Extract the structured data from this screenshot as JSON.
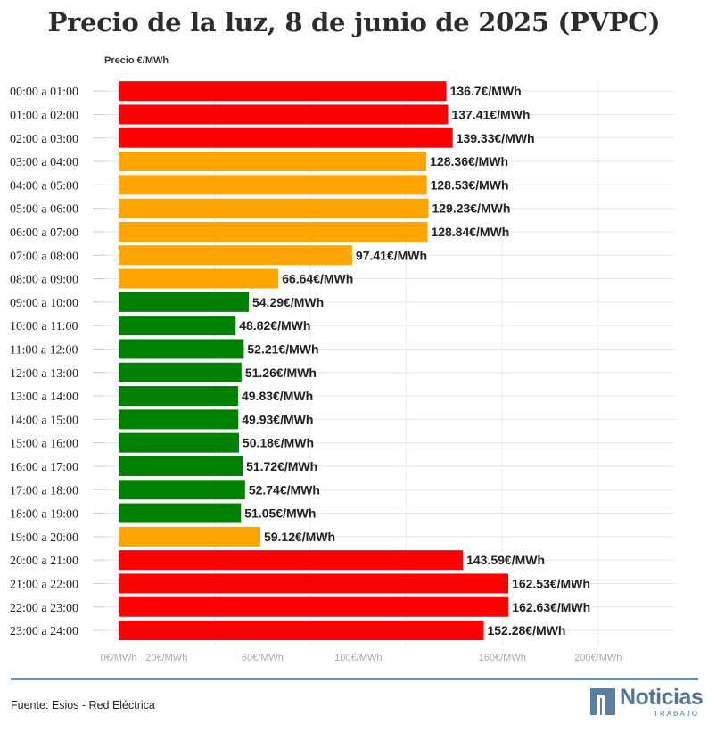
{
  "header": {
    "title": "Precio de la luz, 8 de junio de 2025 (PVPC)",
    "axis_title": "Precio €/MWh"
  },
  "footer": {
    "source": "Fuente: Esios - Red Eléctrica",
    "logo_name": "Noticias",
    "logo_sub": "TRABAJO"
  },
  "colors": {
    "high": "#ff0000",
    "medium": "#ffa500",
    "low": "#008000",
    "divider": "#6a93b0",
    "logo": "#4e7597"
  },
  "chart_data": {
    "type": "bar",
    "orientation": "horizontal",
    "title": "Precio de la luz, 8 de junio de 2025 (PVPC)",
    "ylabel": "Precio €/MWh",
    "xlim": [
      0,
      230
    ],
    "grid": true,
    "categories": [
      "00:00 a 01:00",
      "01:00 a 02:00",
      "02:00 a 03:00",
      "03:00 a 04:00",
      "04:00 a 05:00",
      "05:00 a 06:00",
      "06:00 a 07:00",
      "07:00 a 08:00",
      "08:00 a 09:00",
      "09:00 a 10:00",
      "10:00 a 11:00",
      "11:00 a 12:00",
      "12:00 a 13:00",
      "13:00 a 14:00",
      "14:00 a 15:00",
      "15:00 a 16:00",
      "16:00 a 17:00",
      "17:00 a 18:00",
      "18:00 a 19:00",
      "19:00 a 20:00",
      "20:00 a 21:00",
      "21:00 a 22:00",
      "22:00 a 23:00",
      "23:00 a 24:00"
    ],
    "values": [
      136.7,
      137.41,
      139.33,
      128.36,
      128.53,
      129.23,
      128.84,
      97.41,
      66.64,
      54.29,
      48.82,
      52.21,
      51.26,
      49.83,
      49.93,
      50.18,
      51.72,
      52.74,
      51.05,
      59.12,
      143.59,
      162.53,
      162.63,
      152.28
    ],
    "value_labels": [
      "136.7€/MWh",
      "137.41€/MWh",
      "139.33€/MWh",
      "128.36€/MWh",
      "128.53€/MWh",
      "129.23€/MWh",
      "128.84€/MWh",
      "97.41€/MWh",
      "66.64€/MWh",
      "54.29€/MWh",
      "48.82€/MWh",
      "52.21€/MWh",
      "51.26€/MWh",
      "49.83€/MWh",
      "49.93€/MWh",
      "50.18€/MWh",
      "51.72€/MWh",
      "52.74€/MWh",
      "51.05€/MWh",
      "59.12€/MWh",
      "143.59€/MWh",
      "162.53€/MWh",
      "162.63€/MWh",
      "152.28€/MWh"
    ],
    "bar_levels": [
      "high",
      "high",
      "high",
      "medium",
      "medium",
      "medium",
      "medium",
      "medium",
      "medium",
      "low",
      "low",
      "low",
      "low",
      "low",
      "low",
      "low",
      "low",
      "low",
      "low",
      "medium",
      "high",
      "high",
      "high",
      "high"
    ],
    "x_ticks": [
      {
        "value": 0,
        "label": "0€/MWh"
      },
      {
        "value": 20,
        "label": "20€/MWh"
      },
      {
        "value": 60,
        "label": "60€/MWh"
      },
      {
        "value": 100,
        "label": "100€/MWh"
      },
      {
        "value": 160,
        "label": "160€/MWh"
      },
      {
        "value": 200,
        "label": "200€/MWh"
      }
    ],
    "gridlines": [
      0,
      40,
      80,
      120,
      160,
      200
    ]
  }
}
